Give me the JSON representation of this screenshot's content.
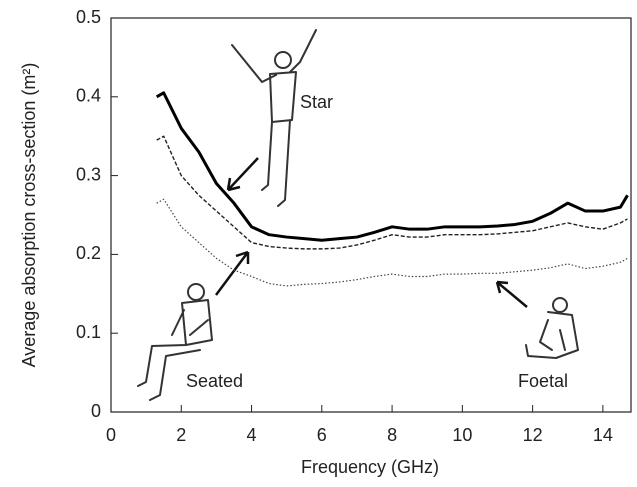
{
  "chart_data": {
    "type": "line",
    "y_label": "Average absorption cross-section (m²)",
    "x_label": "Frequency (GHz)",
    "x": [
      1.3,
      1.5,
      2,
      2.5,
      3,
      3.5,
      4,
      4.5,
      5,
      5.5,
      6,
      6.5,
      7,
      7.5,
      8,
      8.5,
      9,
      9.5,
      10,
      10.5,
      11,
      11.5,
      12,
      12.5,
      13,
      13.5,
      14,
      14.5,
      14.7
    ],
    "series": [
      {
        "color": "#000000",
        "style": "solid",
        "values": [
          0.4,
          0.405,
          0.36,
          0.33,
          0.29,
          0.265,
          0.235,
          0.225,
          0.222,
          0.22,
          0.218,
          0.22,
          0.222,
          0.228,
          0.235,
          0.232,
          0.232,
          0.235,
          0.235,
          0.235,
          0.236,
          0.238,
          0.242,
          0.252,
          0.265,
          0.255,
          0.255,
          0.26,
          0.275
        ]
      },
      {
        "color": "#222222",
        "style": "dashed",
        "values": [
          0.345,
          0.35,
          0.3,
          0.275,
          0.255,
          0.235,
          0.215,
          0.21,
          0.208,
          0.207,
          0.207,
          0.208,
          0.212,
          0.218,
          0.225,
          0.222,
          0.222,
          0.225,
          0.225,
          0.225,
          0.226,
          0.228,
          0.23,
          0.235,
          0.24,
          0.235,
          0.232,
          0.24,
          0.245
        ]
      },
      {
        "color": "#444444",
        "style": "dotted",
        "values": [
          0.265,
          0.27,
          0.235,
          0.215,
          0.195,
          0.18,
          0.172,
          0.163,
          0.16,
          0.162,
          0.163,
          0.165,
          0.168,
          0.172,
          0.175,
          0.172,
          0.172,
          0.175,
          0.175,
          0.176,
          0.176,
          0.178,
          0.18,
          0.183,
          0.188,
          0.182,
          0.185,
          0.19,
          0.195
        ]
      }
    ],
    "annotations": [
      "Star",
      "Seated",
      "Foetal"
    ],
    "xlim": [
      0,
      14.8
    ],
    "xticks": [
      0,
      2,
      4,
      6,
      8,
      10,
      12,
      14
    ],
    "ylim": [
      0,
      0.5
    ],
    "yticks": [
      0,
      0.1,
      0.2,
      0.3,
      0.4,
      0.5
    ]
  }
}
